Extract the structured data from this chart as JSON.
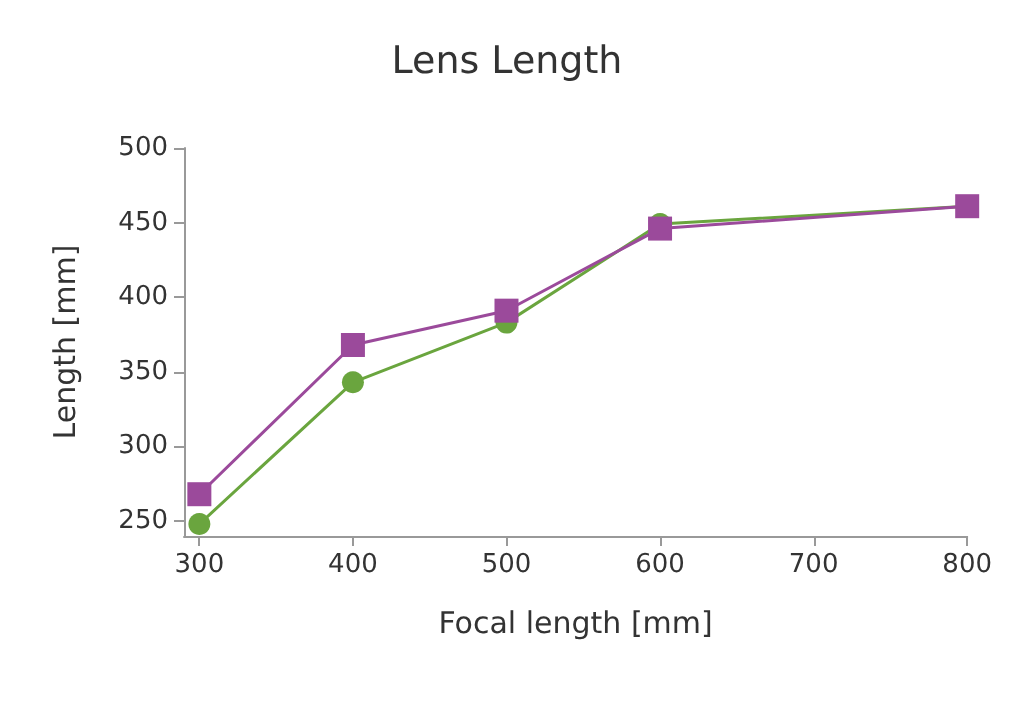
{
  "chart_data": {
    "type": "line",
    "title": "Lens Length",
    "xlabel": "Focal length [mm]",
    "ylabel": "Length [mm]",
    "x": [
      300,
      400,
      500,
      600,
      800
    ],
    "series": [
      {
        "color": "#6aa53e",
        "marker": "circle",
        "values": [
          248,
          343,
          383,
          449,
          461
        ]
      },
      {
        "color": "#9b4a9b",
        "marker": "square",
        "values": [
          268,
          368,
          391,
          446,
          461
        ]
      }
    ],
    "xlim": [
      290,
      800
    ],
    "xticks": [
      300,
      400,
      500,
      600,
      700,
      800
    ],
    "ylim": [
      240,
      500
    ],
    "yticks": [
      250,
      300,
      350,
      400,
      450,
      500
    ],
    "grid": false
  }
}
